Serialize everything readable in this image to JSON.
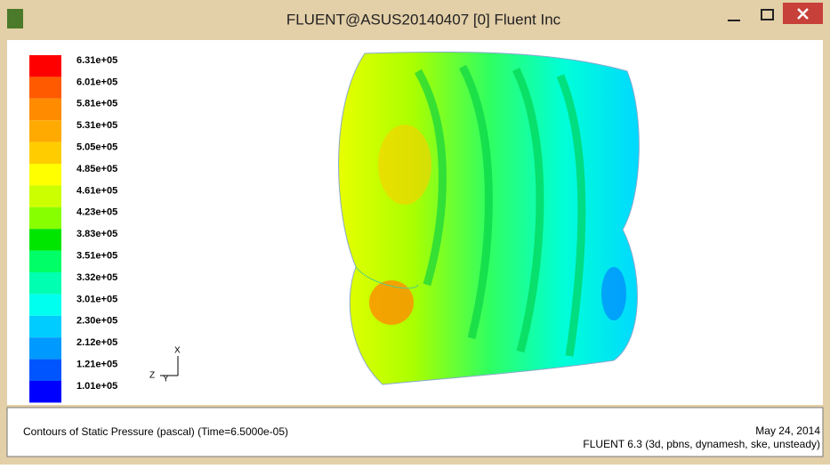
{
  "window": {
    "title": "FLUENT@ASUS20140407 [0] Fluent Inc"
  },
  "legend": {
    "levels": [
      {
        "label": "6.31e+05",
        "color": "#ff0000"
      },
      {
        "label": "6.01e+05",
        "color": "#ff5a00"
      },
      {
        "label": "5.81e+05",
        "color": "#ff8c00"
      },
      {
        "label": "5.31e+05",
        "color": "#ffaa00"
      },
      {
        "label": "5.05e+05",
        "color": "#ffcc00"
      },
      {
        "label": "4.85e+05",
        "color": "#ffff00"
      },
      {
        "label": "4.61e+05",
        "color": "#ccff00"
      },
      {
        "label": "4.23e+05",
        "color": "#88ff00"
      },
      {
        "label": "3.83e+05",
        "color": "#00e600"
      },
      {
        "label": "3.51e+05",
        "color": "#00ff66"
      },
      {
        "label": "3.32e+05",
        "color": "#00ffb0"
      },
      {
        "label": "3.01e+05",
        "color": "#00ffee"
      },
      {
        "label": "2.30e+05",
        "color": "#00ccff"
      },
      {
        "label": "2.12e+05",
        "color": "#0099ff"
      },
      {
        "label": "1.21e+05",
        "color": "#0055ff"
      },
      {
        "label": "1.01e+05",
        "color": "#0000ff"
      }
    ]
  },
  "axes": {
    "x": "X",
    "y": "Y",
    "z": "Z"
  },
  "caption": {
    "left": "Contours of Static Pressure (pascal)  (Time=6.5000e-05)",
    "date": "May 24, 2014",
    "version": "FLUENT 6.3 (3d, pbns, dynamesh, ske, unsteady)"
  }
}
